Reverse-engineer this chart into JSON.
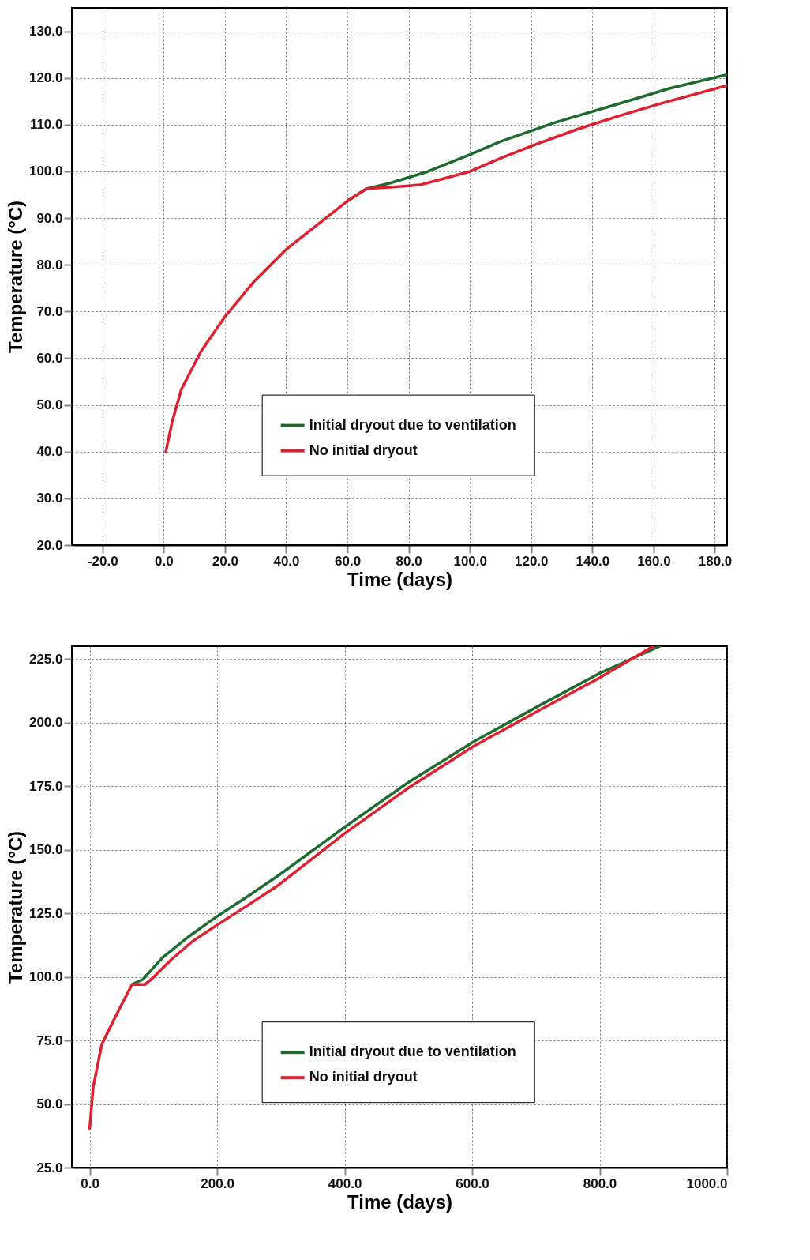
{
  "chart_data": [
    {
      "type": "line",
      "xlabel": "Time (days)",
      "ylabel": "Temperature  (°C)",
      "xlim": [
        -30,
        184
      ],
      "ylim": [
        20,
        135
      ],
      "xticks": [
        {
          "value": -20,
          "label": "-20.0"
        },
        {
          "value": 0,
          "label": "0.0"
        },
        {
          "value": 20,
          "label": "20.0"
        },
        {
          "value": 40,
          "label": "40.0"
        },
        {
          "value": 60,
          "label": "60.0"
        },
        {
          "value": 80,
          "label": "80.0"
        },
        {
          "value": 100,
          "label": "100.0"
        },
        {
          "value": 120,
          "label": "120.0"
        },
        {
          "value": 140,
          "label": "140.0"
        },
        {
          "value": 160,
          "label": "160.0"
        },
        {
          "value": 180,
          "label": "180.0"
        }
      ],
      "yticks": [
        {
          "value": 20,
          "label": "20.0"
        },
        {
          "value": 30,
          "label": "30.0"
        },
        {
          "value": 40,
          "label": "40.0"
        },
        {
          "value": 50,
          "label": "50.0"
        },
        {
          "value": 60,
          "label": "60.0"
        },
        {
          "value": 70,
          "label": "70.0"
        },
        {
          "value": 80,
          "label": "80.0"
        },
        {
          "value": 90,
          "label": "90.0"
        },
        {
          "value": 100,
          "label": "100.0"
        },
        {
          "value": 110,
          "label": "110.0"
        },
        {
          "value": 120,
          "label": "120.0"
        },
        {
          "value": 130,
          "label": "130.0"
        }
      ],
      "grid": true,
      "legend": "bottom right",
      "line_style": "solid",
      "series": [
        {
          "name": "Initial dryout due to ventilation",
          "color": "#1e6b2e",
          "x": [
            60.1,
            66.3,
            74,
            86.4,
            99.6,
            110,
            128,
            144.6,
            165.4,
            184
          ],
          "values": [
            93.7,
            96.3,
            97.5,
            100,
            103.5,
            106.4,
            110.5,
            113.7,
            117.8,
            120.7
          ]
        },
        {
          "name": "No initial dryout",
          "color": "#e0202f",
          "x": [
            0.7,
            2.8,
            5.8,
            12.3,
            19.9,
            29.6,
            40,
            50.4,
            60.1,
            66.3,
            74,
            83.7,
            90.6,
            99.6,
            110,
            120.4,
            135,
            148.8,
            162.7,
            184
          ],
          "values": [
            40,
            46.5,
            53.4,
            61.6,
            68.8,
            76.5,
            83.3,
            88.7,
            93.7,
            96.3,
            96.6,
            97.1,
            98.3,
            99.9,
            102.8,
            105.5,
            109,
            111.9,
            114.6,
            118.4
          ]
        }
      ]
    },
    {
      "type": "line",
      "xlabel": "Time (days)",
      "ylabel": "Temperature  (°C)",
      "xlim": [
        -28,
        1000
      ],
      "ylim": [
        25,
        230
      ],
      "xticks": [
        {
          "value": 0,
          "label": "0.0"
        },
        {
          "value": 200,
          "label": "200.0"
        },
        {
          "value": 400,
          "label": "400.0"
        },
        {
          "value": 600,
          "label": "600.0"
        },
        {
          "value": 800,
          "label": "800.0"
        },
        {
          "value": 1000,
          "label": "1000.0"
        }
      ],
      "yticks": [
        {
          "value": 25,
          "label": "25.0"
        },
        {
          "value": 50,
          "label": "50.0"
        },
        {
          "value": 75,
          "label": "75.0"
        },
        {
          "value": 100,
          "label": "100.0"
        },
        {
          "value": 125,
          "label": "125.0"
        },
        {
          "value": 150,
          "label": "150.0"
        },
        {
          "value": 175,
          "label": "175.0"
        },
        {
          "value": 200,
          "label": "200.0"
        },
        {
          "value": 225,
          "label": "225.0"
        }
      ],
      "grid": true,
      "legend": "bottom right",
      "line_style": "solid",
      "series": [
        {
          "name": "Initial dryout due to ventilation",
          "color": "#1e6b2e",
          "x": [
            66.5,
            83.5,
            114,
            154.7,
            200,
            249.6,
            297,
            399,
            500.8,
            602.6,
            704.4,
            799.5,
            894.5
          ],
          "values": [
            97,
            99,
            107.5,
            115.7,
            123.8,
            131.9,
            140,
            158.7,
            176.6,
            192.5,
            206.5,
            219.3,
            230
          ]
        },
        {
          "name": "No initial dryout",
          "color": "#e0202f",
          "x": [
            0,
            5.4,
            19,
            46,
            66.5,
            87,
            100.4,
            127.6,
            161.5,
            200,
            249.6,
            297,
            399,
            500.8,
            602.6,
            704.4,
            799.5,
            884.3
          ],
          "values": [
            40.3,
            56.5,
            73.5,
            87.1,
            97,
            97,
            99.9,
            106.7,
            114,
            120.4,
            128.4,
            136.2,
            156.2,
            174.4,
            190.7,
            204.7,
            217.5,
            230
          ]
        }
      ]
    }
  ]
}
